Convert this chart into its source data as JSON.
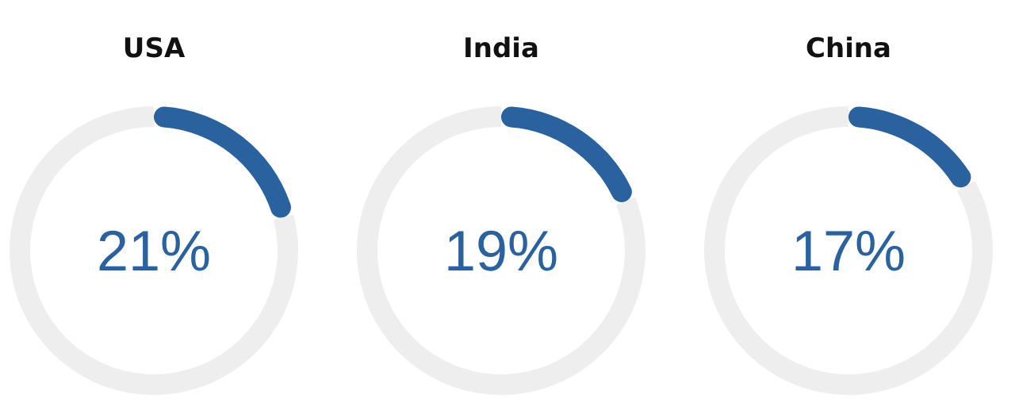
{
  "chart_data": [
    {
      "type": "donut",
      "title": "USA",
      "categories": [
        null,
        null
      ],
      "values": [
        21,
        79
      ],
      "colors": [
        "#2a62a0",
        "#eeeeee"
      ],
      "annotations": [
        "21%"
      ]
    },
    {
      "type": "donut",
      "title": "India",
      "categories": [
        null,
        null
      ],
      "values": [
        19,
        81
      ],
      "colors": [
        "#2a62a0",
        "#eeeeee"
      ],
      "annotations": [
        "19%"
      ]
    },
    {
      "type": "donut",
      "title": "China",
      "categories": [
        null,
        null
      ],
      "values": [
        17,
        83
      ],
      "colors": [
        "#2a62a0",
        "#eeeeee"
      ],
      "annotations": [
        "17%"
      ]
    }
  ]
}
